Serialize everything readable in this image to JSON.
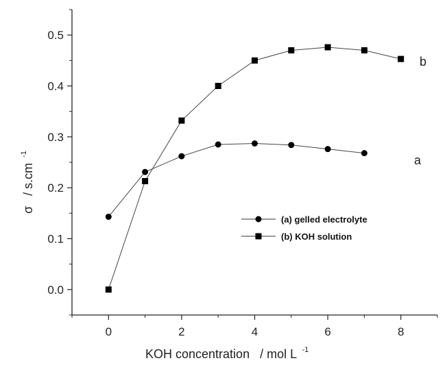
{
  "chart_data": {
    "type": "line",
    "xlabel": "KOH concentration",
    "xunit": "/ mol L",
    "xunit_exp": "-1",
    "ylabel": "σ",
    "yunit": "/ s.cm",
    "yunit_exp": "-1",
    "xlim": [
      -1,
      9
    ],
    "ylim": [
      -0.05,
      0.55
    ],
    "x_ticks": [
      0,
      2,
      4,
      6,
      8
    ],
    "y_ticks": [
      0.0,
      0.1,
      0.2,
      0.3,
      0.4,
      0.5
    ],
    "x_tick_labels": [
      "0",
      "2",
      "4",
      "6",
      "8"
    ],
    "y_tick_labels": [
      "0.0",
      "0.1",
      "0.2",
      "0.3",
      "0.4",
      "0.5"
    ],
    "grid": false,
    "legend_position": "center-right",
    "series": [
      {
        "name": "(a) gelled electrolyte",
        "tag": "a",
        "marker": "circle",
        "color": "#000000",
        "x": [
          0,
          1,
          2,
          3,
          4,
          5,
          6,
          7
        ],
        "y": [
          0.143,
          0.231,
          0.262,
          0.285,
          0.287,
          0.284,
          0.276,
          0.268
        ]
      },
      {
        "name": "(b) KOH solution",
        "tag": "b",
        "marker": "square",
        "color": "#000000",
        "x": [
          0,
          1,
          2,
          3,
          4,
          5,
          6,
          7,
          8
        ],
        "y": [
          0.0,
          0.213,
          0.332,
          0.4,
          0.45,
          0.47,
          0.476,
          0.47,
          0.453
        ]
      }
    ]
  }
}
